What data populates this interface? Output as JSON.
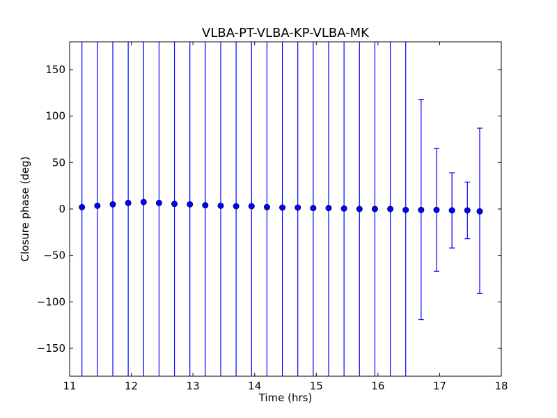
{
  "chart_data": {
    "type": "scatter",
    "title": "VLBA-PT-VLBA-KP-VLBA-MK",
    "xlabel": "Time (hrs)",
    "ylabel": "Closure phase (deg)",
    "xlim": [
      11,
      18
    ],
    "ylim": [
      -180,
      180
    ],
    "xticks": [
      11,
      12,
      13,
      14,
      15,
      16,
      17,
      18
    ],
    "yticks": [
      -150,
      -100,
      -50,
      0,
      50,
      100,
      150
    ],
    "ytick_labels": [
      "−150",
      "−100",
      "−50",
      "0",
      "50",
      "100",
      "150"
    ],
    "grid": false,
    "colors": {
      "marker": "#0000ff",
      "errorbar": "#0000ff",
      "axes": "#000000"
    },
    "series": [
      {
        "x": [
          11.2,
          11.45,
          11.7,
          11.95,
          12.2,
          12.45,
          12.7,
          12.95,
          13.2,
          13.45,
          13.7,
          13.95,
          14.2,
          14.45,
          14.7,
          14.95,
          15.2,
          15.45,
          15.7,
          15.95,
          16.2,
          16.45,
          16.7,
          16.95,
          17.2,
          17.45,
          17.65
        ],
        "y": [
          2,
          3.5,
          5,
          6.5,
          7.5,
          6.5,
          5.5,
          5,
          4,
          3.5,
          3,
          3,
          2,
          1.5,
          1.5,
          1,
          1,
          0.5,
          0,
          0,
          0,
          -1,
          -1,
          -1,
          -1.5,
          -1.5,
          -2.5
        ],
        "yerr_low": [
          -180,
          -180,
          -180,
          -180,
          -180,
          -180,
          -180,
          -180,
          -180,
          -180,
          -180,
          -180,
          -180,
          -180,
          -180,
          -180,
          -180,
          -180,
          -180,
          -180,
          -180,
          -180,
          -119,
          -67,
          -42,
          -32,
          -91
        ],
        "yerr_high": [
          180,
          180,
          180,
          180,
          180,
          180,
          180,
          180,
          180,
          180,
          180,
          180,
          180,
          180,
          180,
          180,
          180,
          180,
          180,
          180,
          180,
          180,
          118,
          65,
          39,
          29,
          87
        ]
      }
    ]
  }
}
